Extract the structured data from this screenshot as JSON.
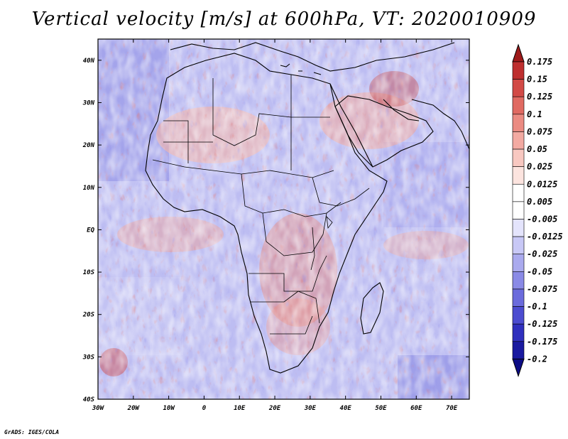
{
  "title": "Vertical velocity [m/s] at 600hPa, VT: 2020010909",
  "credit": "GrADS: IGES/COLA",
  "map": {
    "region": "Africa and surrounding oceans",
    "lon_range": [
      -30,
      75
    ],
    "lat_range": [
      -40,
      45
    ],
    "lat_labels": [
      "40N",
      "30N",
      "20N",
      "10N",
      "EQ",
      "10S",
      "20S",
      "30S",
      "40S"
    ],
    "lon_labels": [
      "30W",
      "20W",
      "10W",
      "0",
      "10E",
      "20E",
      "30E",
      "40E",
      "50E",
      "60E",
      "70E"
    ]
  },
  "colorbar": {
    "labels": [
      "0.175",
      "0.15",
      "0.125",
      "0.1",
      "0.075",
      "0.05",
      "0.025",
      "0.0125",
      "0.005",
      "-0.005",
      "-0.0125",
      "-0.025",
      "-0.05",
      "-0.075",
      "-0.1",
      "-0.125",
      "-0.175",
      "-0.2"
    ],
    "colors": [
      "#9e1a1a",
      "#be2f2f",
      "#d24a46",
      "#e06a62",
      "#eb8b82",
      "#f3aaa2",
      "#f8c8c1",
      "#fce4df",
      "#ffffff",
      "#ffffff",
      "#e4e4fc",
      "#c8c8f6",
      "#aaaaee",
      "#8a8ae6",
      "#6b6bdc",
      "#4c4cd0",
      "#3030be",
      "#1a1aa0",
      "#0c0c85"
    ]
  }
}
